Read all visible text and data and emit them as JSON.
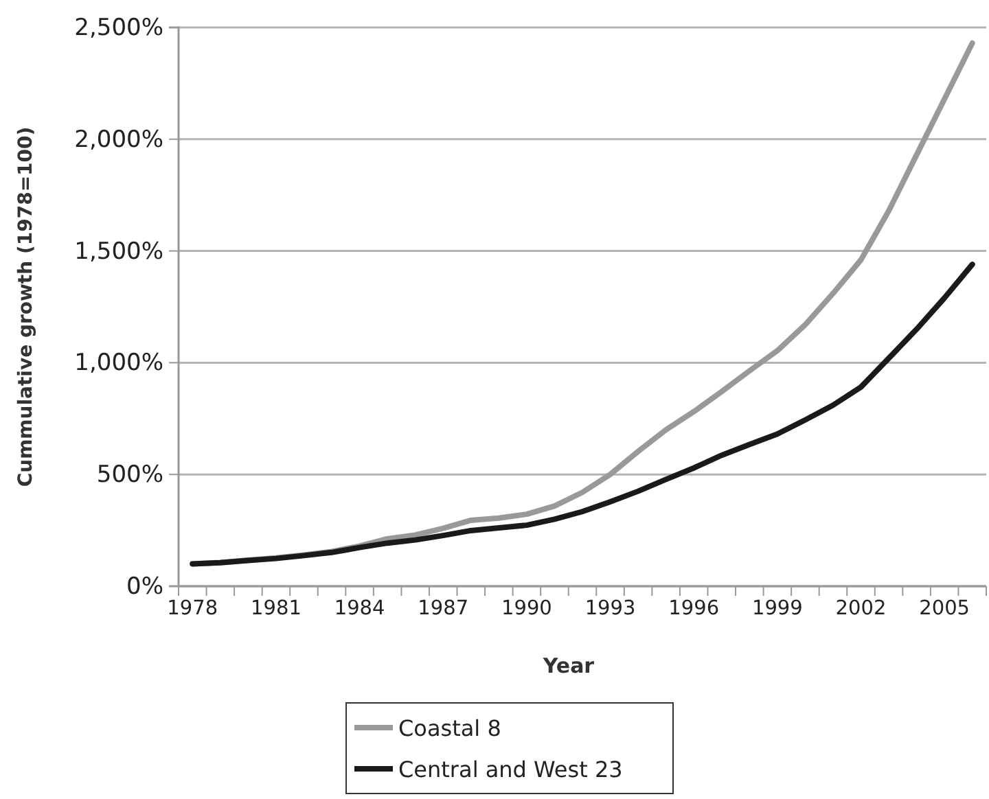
{
  "chart_data": {
    "type": "line",
    "xlabel": "Year",
    "ylabel": "Cummulative growth (1978=100)",
    "categories": [
      "1978",
      null,
      null,
      "1981",
      null,
      null,
      "1984",
      null,
      null,
      "1987",
      null,
      null,
      "1990",
      null,
      null,
      "1993",
      null,
      null,
      "1996",
      null,
      null,
      "1999",
      null,
      null,
      "2002",
      null,
      null,
      "2005",
      null
    ],
    "series": [
      {
        "name": "Coastal 8",
        "color": "#999999",
        "values": [
          100,
          106,
          117,
          127,
          140,
          155,
          180,
          212,
          229,
          259,
          295,
          305,
          322,
          359,
          420,
          500,
          603,
          700,
          781,
          871,
          964,
          1054,
          1170,
          1310,
          1460,
          1680,
          1930,
          2180,
          2430
        ]
      },
      {
        "name": "Central and West 23",
        "color": "#1a1a1a",
        "values": [
          100,
          105,
          115,
          124,
          137,
          151,
          173,
          193,
          207,
          227,
          249,
          261,
          273,
          300,
          334,
          378,
          425,
          478,
          529,
          586,
          634,
          681,
          744,
          810,
          891,
          1020,
          1150,
          1290,
          1440
        ]
      }
    ],
    "ylim": [
      0,
      2500
    ],
    "yticks": [
      {
        "value": 0,
        "label": "0%"
      },
      {
        "value": 500,
        "label": "500%"
      },
      {
        "value": 1000,
        "label": "1,000%"
      },
      {
        "value": 1500,
        "label": "1,500%"
      },
      {
        "value": 2000,
        "label": "2,000%"
      },
      {
        "value": 2500,
        "label": "2,500%"
      }
    ],
    "grid": "y",
    "legend": "bottom",
    "marker": "none",
    "line_style": "solid"
  }
}
